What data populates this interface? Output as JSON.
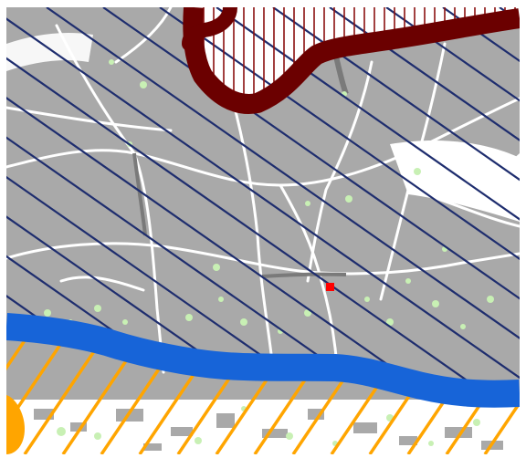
{
  "map": {
    "colors": {
      "background": "#ffffff",
      "urban_fill": "#a9a9a9",
      "road_stroke": "#ffffff",
      "green_space": "#c8f0b4",
      "dark_red_zone_fill": "#6b0000",
      "dark_red_zone_hatch": "#8b1010",
      "navy_hatch": "#1e2d6e",
      "river": "#1764d8",
      "orange_hatch": "#ffa500",
      "marker": "#ff0000"
    },
    "layers": [
      {
        "id": "urban-area",
        "kind": "fill"
      },
      {
        "id": "road-network",
        "kind": "lines"
      },
      {
        "id": "green-spaces",
        "kind": "patches"
      },
      {
        "id": "navy-hatched-zone",
        "kind": "diagonal-hatch"
      },
      {
        "id": "dark-red-zone",
        "kind": "vertical-hatch-with-border"
      },
      {
        "id": "blue-river",
        "kind": "thick-line"
      },
      {
        "id": "orange-hatched-zone",
        "kind": "diagonal-hatch"
      },
      {
        "id": "location-marker",
        "kind": "point"
      }
    ]
  }
}
